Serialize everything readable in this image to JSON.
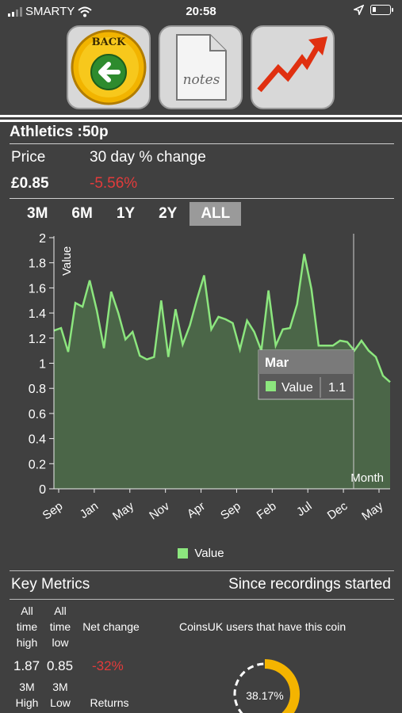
{
  "status_bar": {
    "carrier": "SMARTY",
    "time": "20:58"
  },
  "toolbar": {
    "back_label": "BACK",
    "notes_label": "notes"
  },
  "coin": {
    "title": "Athletics :50p",
    "price_label": "Price",
    "change_label": "30 day % change",
    "price": "£0.85",
    "change": "-5.56%"
  },
  "ranges": [
    "3M",
    "6M",
    "1Y",
    "2Y",
    "ALL"
  ],
  "active_range": "ALL",
  "chart_data": {
    "type": "area",
    "ylabel": "Value",
    "xlabel": "Month",
    "ylim": [
      0,
      2
    ],
    "yticks": [
      0,
      0.2,
      0.4,
      0.6,
      0.8,
      1,
      1.2,
      1.4,
      1.6,
      1.8,
      2
    ],
    "yticklabels": [
      "0",
      "0.2",
      "0.4",
      "0.6",
      "0.8",
      "1",
      "1.2",
      "1.4",
      "1.6",
      "1.8",
      "2"
    ],
    "xticklabels": [
      "Sep",
      "Jan",
      "May",
      "Nov",
      "Apr",
      "Sep",
      "Feb",
      "Jul",
      "Dec",
      "May"
    ],
    "series": [
      {
        "name": "Value",
        "color": "#8ce67e",
        "values": [
          1.26,
          1.28,
          1.09,
          1.48,
          1.45,
          1.66,
          1.42,
          1.12,
          1.57,
          1.4,
          1.19,
          1.25,
          1.06,
          1.03,
          1.05,
          1.5,
          1.05,
          1.43,
          1.15,
          1.3,
          1.51,
          1.7,
          1.27,
          1.37,
          1.35,
          1.32,
          1.11,
          1.34,
          1.25,
          1.1,
          1.58,
          1.14,
          1.27,
          1.28,
          1.47,
          1.87,
          1.59,
          1.14,
          1.14,
          1.14,
          1.18,
          1.17,
          1.1,
          1.18,
          1.1,
          1.05,
          0.9,
          0.85
        ]
      }
    ],
    "tooltip": {
      "title": "Mar",
      "series": "Value",
      "value": "1.1"
    }
  },
  "legend_label": "Value",
  "metrics": {
    "title": "Key Metrics",
    "since": "Since recordings started",
    "all_high_label": "All time high",
    "all_low_label": "All time low",
    "net_change_label": "Net change",
    "all_high": "1.87",
    "all_low": "0.85",
    "net_change": "-32%",
    "m3_high_label": "3M High",
    "m3_low_label": "3M Low",
    "returns_label": "Returns",
    "users_label": "CoinsUK users that have this coin",
    "users_pct": "38.17%",
    "users_fraction": 0.3817
  }
}
